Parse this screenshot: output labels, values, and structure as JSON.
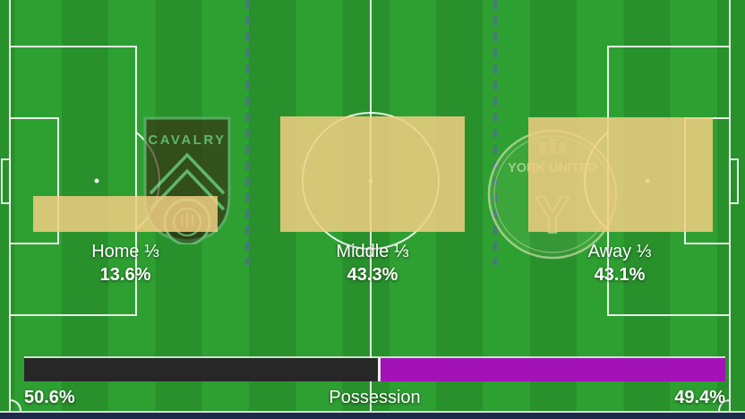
{
  "chart_data": {
    "type": "bar",
    "categories": [
      "Home ⅓",
      "Middle ⅓",
      "Away ⅓"
    ],
    "values": [
      13.6,
      43.3,
      43.1
    ],
    "value_labels": [
      "13.6%",
      "43.3%",
      "43.1%"
    ],
    "unit": "%",
    "bar_color": "#F1CE82",
    "orientation": "vertical-bottom-aligned",
    "legend": "none",
    "grid": "off"
  },
  "possession_bar": {
    "label": "Possession",
    "segments": [
      {
        "team": "home",
        "value": 50.6,
        "display": "50.6%",
        "color": "#272727"
      },
      {
        "team": "away",
        "value": 49.4,
        "display": "49.4%",
        "color": "#A312B6"
      }
    ]
  },
  "crests": {
    "home": {
      "text": "CAVALRY"
    },
    "away": {
      "text": "YORK UNITED"
    }
  },
  "colors": {
    "pitch_stripe_light": "#2EA032",
    "pitch_stripe_dark": "#28912C",
    "pitch_lines": "#FFFFFF",
    "thirds_divider_dash": "#4A7389",
    "footer_strip": "#1D2A4A",
    "bar_fill": "#F1CE82",
    "possession_home": "#272727",
    "possession_away": "#A312B6"
  }
}
